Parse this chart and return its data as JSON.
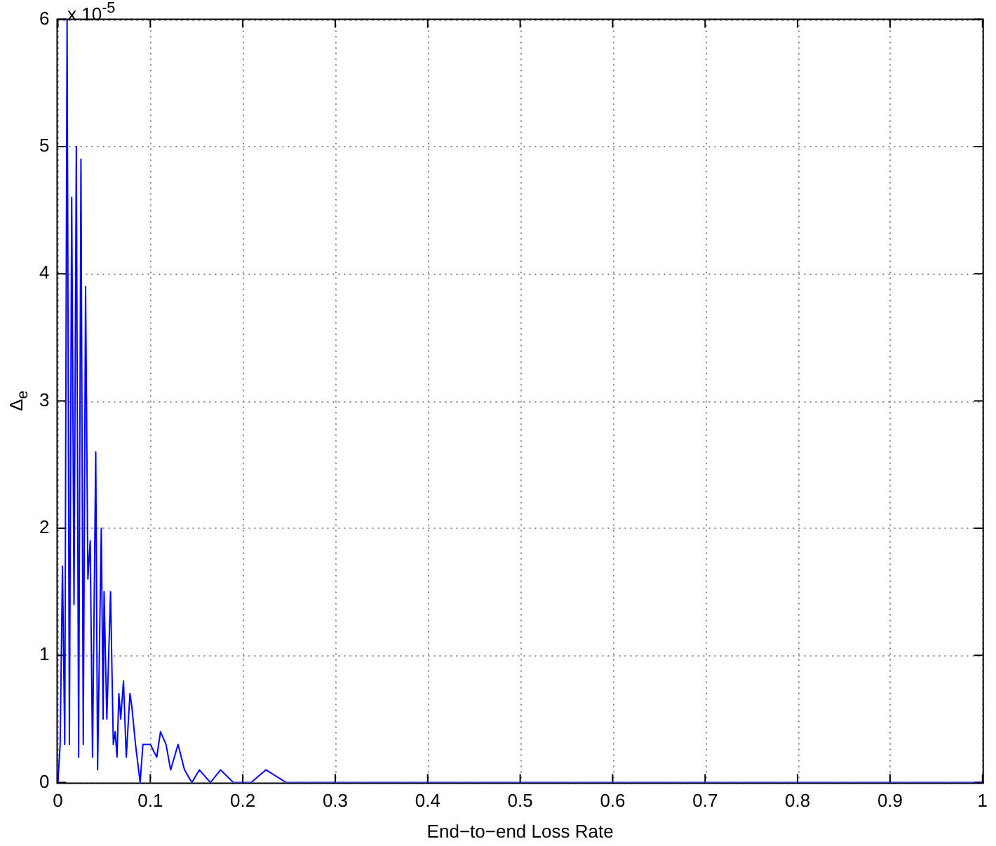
{
  "chart_data": {
    "type": "line",
    "xlabel": "End−to−end Loss Rate",
    "ylabel": "Δ$_{e}$",
    "annotations": [
      "x 10$^{-5}$"
    ],
    "x": [
      0,
      0.0025,
      0.005,
      0.0075,
      0.01,
      0.0125,
      0.015,
      0.0175,
      0.02,
      0.0225,
      0.025,
      0.0275,
      0.03,
      0.0325,
      0.035,
      0.0375,
      0.041,
      0.043,
      0.047,
      0.049,
      0.05,
      0.053,
      0.057,
      0.06,
      0.062,
      0.064,
      0.066,
      0.068,
      0.071,
      0.074,
      0.078,
      0.08,
      0.084,
      0.089,
      0.092,
      0.1,
      0.107,
      0.111,
      0.117,
      0.122,
      0.13,
      0.137,
      0.145,
      0.153,
      0.165,
      0.176,
      0.19,
      0.209,
      0.225,
      0.247,
      1
    ],
    "series": [
      {
        "color": "#0000ff",
        "values": [
          0,
          0.3,
          1.7,
          0.3,
          6.0,
          0.3,
          4.6,
          1.4,
          5.0,
          0.2,
          4.9,
          0.3,
          3.9,
          1.6,
          1.9,
          0.2,
          2.6,
          0.1,
          2.0,
          0.5,
          1.5,
          0.5,
          1.5,
          0.3,
          0.4,
          0.2,
          0.7,
          0.5,
          0.8,
          0.2,
          0.7,
          0.6,
          0.3,
          0,
          0.3,
          0.3,
          0.2,
          0.4,
          0.3,
          0.1,
          0.3,
          0.1,
          0,
          0.1,
          0,
          0.1,
          0,
          0,
          0.1,
          0,
          0
        ]
      }
    ],
    "xlim": [
      0,
      1
    ],
    "xticks": [
      0,
      0.1,
      0.2,
      0.3,
      0.4,
      0.5,
      0.6,
      0.7,
      0.8,
      0.9,
      1
    ],
    "ylim": [
      0,
      6
    ],
    "yticks": [
      0,
      1,
      2,
      3,
      4,
      5,
      6
    ],
    "grid": true,
    "legend": false,
    "marker": "none",
    "line_style": "solid"
  }
}
